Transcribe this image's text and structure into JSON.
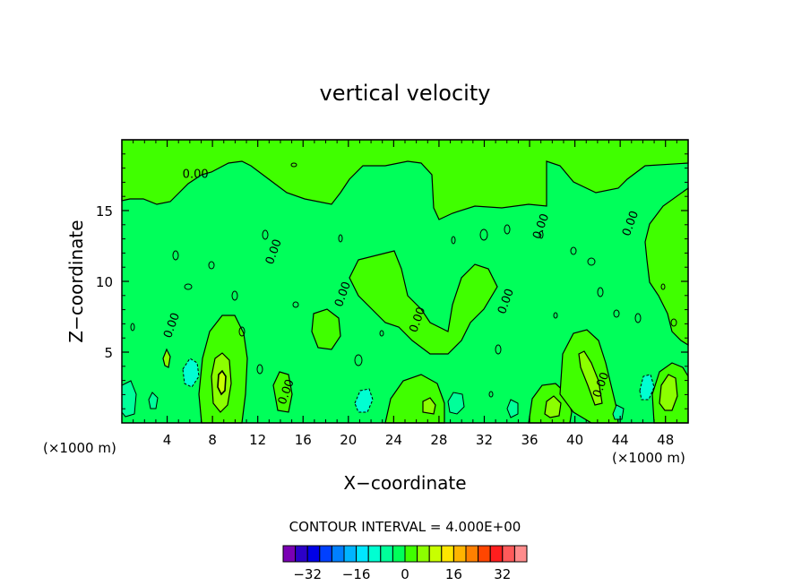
{
  "chart_data": {
    "type": "contour",
    "title": "vertical velocity",
    "xlabel": "X−coordinate",
    "ylabel": "Z−coordinate",
    "x_unit_left": "(×1000 m)",
    "x_unit_right": "(×1000 m)",
    "xlim": [
      0,
      50
    ],
    "ylim": [
      0,
      20
    ],
    "x_ticks": [
      4,
      8,
      12,
      16,
      20,
      24,
      28,
      32,
      36,
      40,
      44,
      48
    ],
    "y_ticks": [
      5,
      10,
      15
    ],
    "contour_interval_text": "CONTOUR INTERVAL = 4.000E+00",
    "contour_interval": 4.0,
    "contour_labels": [
      {
        "x": 6.5,
        "z": 17.3,
        "text": "0.00"
      },
      {
        "x": 4.7,
        "z": 6.8,
        "text": "0.00"
      },
      {
        "x": 14.8,
        "z": 2.1,
        "text": "0.00"
      },
      {
        "x": 13.7,
        "z": 12.0,
        "text": "0.00"
      },
      {
        "x": 19.8,
        "z": 9.0,
        "text": "0.00"
      },
      {
        "x": 26.4,
        "z": 7.2,
        "text": "0.00"
      },
      {
        "x": 34.2,
        "z": 8.5,
        "text": "0.00"
      },
      {
        "x": 37.3,
        "z": 13.8,
        "text": "0.00"
      },
      {
        "x": 42.6,
        "z": 2.6,
        "text": "0.00"
      },
      {
        "x": 45.2,
        "z": 14.0,
        "text": "0.00"
      }
    ],
    "colorbar": {
      "ticks": [
        "−32",
        "−16",
        "0",
        "16",
        "32"
      ],
      "tick_values": [
        -32,
        -16,
        0,
        16,
        32
      ],
      "min": -40,
      "max": 40,
      "colors": [
        "#7a00b4",
        "#2c00c8",
        "#0000e6",
        "#0040ff",
        "#0080ff",
        "#00b4ff",
        "#00e6ff",
        "#00ffd2",
        "#00ff9a",
        "#00ff5a",
        "#40ff00",
        "#8cff00",
        "#c8ff00",
        "#ffe600",
        "#ffb400",
        "#ff8000",
        "#ff4600",
        "#ff1e1e",
        "#ff5a5a",
        "#ff8c8c"
      ]
    },
    "regions": [
      {
        "level": "background",
        "color": "#00ff5a"
      },
      {
        "level": "0_to_4",
        "color": "#40ff00"
      },
      {
        "level": "4_to_8",
        "color": "#8cff00"
      },
      {
        "level": "minus4_to_0",
        "color": "#00ff9a"
      },
      {
        "level": "minus8_to_minus4",
        "color": "#00ffd2"
      }
    ]
  }
}
